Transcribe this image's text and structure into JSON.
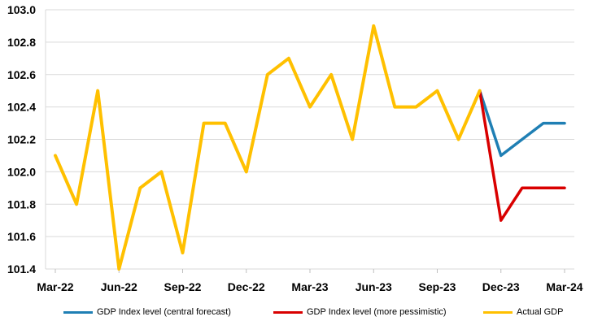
{
  "chart_data": {
    "type": "line",
    "title": "",
    "xlabel": "",
    "ylabel": "",
    "ylim": [
      101.4,
      103.0
    ],
    "yticks": [
      "101.4",
      "101.6",
      "101.8",
      "102.0",
      "102.2",
      "102.4",
      "102.6",
      "102.8",
      "103.0"
    ],
    "xticks": [
      "Mar-22",
      "Jun-22",
      "Sep-22",
      "Dec-22",
      "Mar-23",
      "Jun-23",
      "Sep-23",
      "Dec-23",
      "Mar-24"
    ],
    "x": [
      "Mar-22",
      "Apr-22",
      "May-22",
      "Jun-22",
      "Jul-22",
      "Aug-22",
      "Sep-22",
      "Oct-22",
      "Nov-22",
      "Dec-22",
      "Jan-23",
      "Feb-23",
      "Mar-23",
      "Apr-23",
      "May-23",
      "Jun-23",
      "Jul-23",
      "Aug-23",
      "Sep-23",
      "Oct-23",
      "Nov-23",
      "Dec-23",
      "Jan-24",
      "Feb-24",
      "Mar-24"
    ],
    "grid": "horizontal",
    "legend_position": "bottom",
    "series": [
      {
        "name": "GDP Index level (central forecast)",
        "color": "#1f7fb4",
        "values": [
          null,
          null,
          null,
          null,
          null,
          null,
          null,
          null,
          null,
          null,
          null,
          null,
          null,
          null,
          null,
          null,
          null,
          null,
          null,
          null,
          102.5,
          102.1,
          102.2,
          102.3,
          102.3
        ]
      },
      {
        "name": "GDP Index level (more pessimistic)",
        "color": "#d90000",
        "values": [
          null,
          null,
          null,
          null,
          null,
          null,
          null,
          null,
          null,
          null,
          null,
          null,
          null,
          null,
          null,
          null,
          null,
          null,
          null,
          null,
          102.5,
          101.7,
          101.9,
          101.9,
          101.9
        ]
      },
      {
        "name": "Actual GDP",
        "color": "#ffc000",
        "values": [
          102.1,
          101.8,
          102.5,
          101.4,
          101.9,
          102.0,
          101.5,
          102.3,
          102.3,
          102.0,
          102.6,
          102.7,
          102.4,
          102.6,
          102.2,
          102.9,
          102.4,
          102.4,
          102.5,
          102.2,
          102.5,
          null,
          null,
          null,
          null
        ]
      }
    ]
  }
}
